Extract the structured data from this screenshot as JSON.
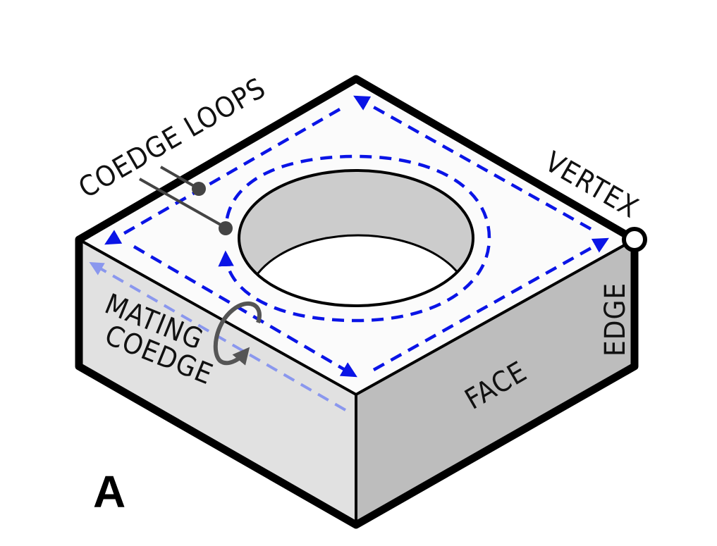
{
  "figure": {
    "panel_letter": "A",
    "labels": {
      "coedge_loops": "COEDGE LOOPS",
      "vertex": "VERTEX",
      "edge": "EDGE",
      "face": "FACE",
      "mating_line1": "MATING",
      "mating_line2": "COEDGE"
    }
  },
  "colors": {
    "outline": "#000000",
    "top_face": "#fbfbfb",
    "left_face": "#e1e1e1",
    "right_face": "#bdbdbd",
    "hole_wall": "#cccccc",
    "coedge": "#0a14e6",
    "mating_coedge": "#8a97ee",
    "leader": "#444444",
    "rotation_arrow": "#555555"
  }
}
